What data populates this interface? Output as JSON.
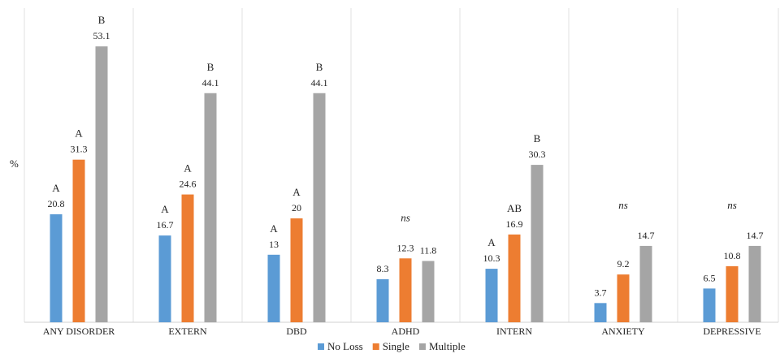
{
  "chart_data": {
    "type": "bar",
    "ylabel": "%",
    "ylim": [
      0,
      62
    ],
    "grid": false,
    "legend": "bottom",
    "categories": [
      "ANY DISORDER",
      "EXTERN",
      "DBD",
      "ADHD",
      "INTERN",
      "ANXIETY",
      "DEPRESSIVE"
    ],
    "series": [
      {
        "name": "No Loss",
        "color": "#5b9bd5",
        "values": [
          20.8,
          16.7,
          13,
          8.3,
          10.3,
          3.7,
          6.5
        ]
      },
      {
        "name": "Single",
        "color": "#ed7d31",
        "values": [
          31.3,
          24.6,
          20,
          12.3,
          16.9,
          9.2,
          10.8
        ]
      },
      {
        "name": "Multiple",
        "color": "#a5a5a5",
        "values": [
          53.1,
          44.1,
          44.1,
          11.8,
          30.3,
          14.7,
          14.7
        ]
      }
    ],
    "value_labels": [
      [
        "20.8",
        "16.7",
        "13",
        "8.3",
        "10.3",
        "3.7",
        "6.5"
      ],
      [
        "31.3",
        "24.6",
        "20",
        "12.3",
        "16.9",
        "9.2",
        "10.8"
      ],
      [
        "53.1",
        "44.1",
        "44.1",
        "11.8",
        "30.3",
        "14.7",
        "14.7"
      ]
    ],
    "significance": [
      [
        "A",
        "A",
        "B"
      ],
      [
        "A",
        "A",
        "B"
      ],
      [
        "A",
        "A",
        "B"
      ],
      [
        "ns"
      ],
      [
        "A",
        "AB",
        "B"
      ],
      [
        "ns"
      ],
      [
        "ns"
      ]
    ]
  }
}
